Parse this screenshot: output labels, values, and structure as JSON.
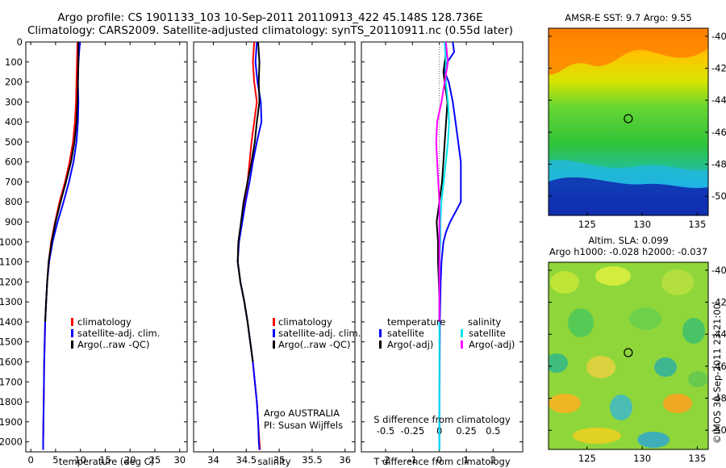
{
  "header": {
    "line1": "Argo profile: CS 1901133_103 10-Sep-2011 20110913_422 45.148S 128.736E",
    "line2": "Climatology: CARS2009. Satellite-adjusted climatology: synTS_20110911.nc (0.55d later)"
  },
  "credit": {
    "org": "Argo AUSTRALIA",
    "pi": "PI: Susan Wijffels",
    "stamp": "©IMOS 30-Sep-2011 23:21:00"
  },
  "colors": {
    "climatology": "#ff0000",
    "satellite": "#0000ff",
    "argo": "#000000",
    "sal_satellite": "#00e5ee",
    "sal_argo": "#ff00ff"
  },
  "chart_data": [
    {
      "type": "line",
      "id": "temperature",
      "xlabel": "temperature (deg C)",
      "xlim": [
        -1,
        31.5
      ],
      "xticks": [
        0,
        5,
        10,
        15,
        20,
        25,
        30
      ],
      "ylim": [
        0,
        2050
      ],
      "yticks": [
        0,
        100,
        200,
        300,
        400,
        500,
        600,
        700,
        800,
        900,
        1000,
        1100,
        1200,
        1300,
        1400,
        1500,
        1600,
        1700,
        1800,
        1900,
        2000
      ],
      "legend": [
        "climatology",
        "satellite-adj. clim.",
        "Argo(..raw -QC)"
      ],
      "series": [
        {
          "name": "climatology",
          "color": "#ff0000",
          "depth": [
            0,
            100,
            200,
            300,
            400,
            500,
            600,
            700,
            800,
            900,
            1000,
            1100,
            1200,
            1300,
            1400,
            1500,
            1600,
            1700,
            1800,
            1900,
            2000,
            2040
          ],
          "values": [
            9.4,
            9.3,
            9.2,
            9.1,
            8.9,
            8.5,
            7.8,
            6.9,
            5.8,
            4.9,
            4.1,
            3.6,
            3.3,
            3.1,
            2.9,
            2.8,
            2.7,
            2.65,
            2.6,
            2.55,
            2.5,
            2.5
          ]
        },
        {
          "name": "satellite-adj. clim.",
          "color": "#0000ff",
          "depth": [
            0,
            100,
            200,
            300,
            400,
            500,
            600,
            700,
            800,
            900,
            1000,
            1100,
            1200,
            1300,
            1400,
            1500,
            1600,
            1700,
            1800,
            1900,
            2000,
            2040
          ],
          "values": [
            9.9,
            9.6,
            9.5,
            9.6,
            9.5,
            9.2,
            8.6,
            7.7,
            6.6,
            5.4,
            4.4,
            3.7,
            3.3,
            3.1,
            2.9,
            2.8,
            2.7,
            2.65,
            2.6,
            2.55,
            2.5,
            2.5
          ]
        },
        {
          "name": "Argo(..raw -QC)",
          "color": "#000000",
          "depth": [
            0,
            100,
            200,
            300,
            400,
            500,
            600,
            700,
            800,
            900,
            1000,
            1100,
            1200,
            1300,
            1400
          ],
          "values": [
            9.6,
            9.6,
            9.5,
            9.4,
            9.2,
            8.8,
            8.1,
            7.1,
            6.0,
            5.0,
            4.2,
            3.6,
            3.3,
            3.1,
            2.9
          ]
        }
      ]
    },
    {
      "type": "line",
      "id": "salinity",
      "xlabel": "salinity",
      "xlim": [
        33.7,
        36.15
      ],
      "xticks": [
        34,
        34.5,
        35,
        35.5,
        36
      ],
      "ylim": [
        0,
        2050
      ],
      "legend": [
        "climatology",
        "satellite-adj. clim.",
        "Argo(..raw -QC)"
      ],
      "series": [
        {
          "name": "climatology",
          "color": "#ff0000",
          "depth": [
            0,
            100,
            200,
            300,
            400,
            500,
            600,
            700,
            800,
            900,
            1000,
            1100,
            1200,
            1300,
            1400,
            1500,
            1600,
            1700,
            1800,
            1900,
            2000,
            2040
          ],
          "values": [
            34.62,
            34.6,
            34.62,
            34.66,
            34.62,
            34.58,
            34.55,
            34.52,
            34.48,
            34.43,
            34.38,
            34.37,
            34.41,
            34.47,
            34.52,
            34.56,
            34.6,
            34.63,
            34.66,
            34.68,
            34.7,
            34.71
          ]
        },
        {
          "name": "satellite-adj. clim.",
          "color": "#0000ff",
          "depth": [
            0,
            100,
            200,
            300,
            400,
            500,
            600,
            700,
            800,
            900,
            1000,
            1100,
            1200,
            1300,
            1400,
            1500,
            1600,
            1700,
            1800,
            1900,
            2000,
            2040
          ],
          "values": [
            34.66,
            34.64,
            34.67,
            34.72,
            34.73,
            34.66,
            34.6,
            34.55,
            34.49,
            34.44,
            34.39,
            34.37,
            34.41,
            34.47,
            34.52,
            34.56,
            34.6,
            34.63,
            34.66,
            34.68,
            34.69,
            34.7
          ]
        },
        {
          "name": "Argo(..raw -QC)",
          "color": "#000000",
          "depth": [
            0,
            100,
            200,
            300,
            400,
            500,
            600,
            700,
            800,
            900,
            1000,
            1100,
            1200,
            1300,
            1400,
            1500,
            1600
          ],
          "values": [
            34.68,
            34.7,
            34.69,
            34.7,
            34.66,
            34.63,
            34.58,
            34.52,
            34.46,
            34.42,
            34.38,
            34.37,
            34.41,
            34.47,
            34.52,
            34.56,
            34.6
          ]
        }
      ]
    },
    {
      "type": "line",
      "id": "difference",
      "xlabel": "T difference from climatology",
      "xlabel2": "S difference from climatology",
      "xlim": [
        -2.9,
        3.1
      ],
      "xticks": [
        -2,
        -1,
        0,
        1,
        2
      ],
      "xticks2": [
        -0.5,
        -0.25,
        0,
        0.25,
        0.5
      ],
      "xticks2_labels": [
        "-0.5",
        "-0.25",
        "0",
        "0.25",
        "0.5"
      ],
      "ylim": [
        0,
        2050
      ],
      "legend_titles": [
        "temperature",
        "salinity"
      ],
      "legend": [
        "satellite",
        "Argo(-adj)",
        "satellite",
        "Argo(-adj)"
      ],
      "series": [
        {
          "name": "satellite",
          "group": "temperature",
          "color": "#0000ff",
          "depth": [
            0,
            50,
            100,
            150,
            200,
            300,
            400,
            500,
            600,
            700,
            800,
            850,
            900,
            950,
            1000,
            1100,
            1200,
            1400,
            1600,
            1800,
            2000,
            2040
          ],
          "values": [
            0.5,
            0.55,
            0.3,
            0.2,
            0.35,
            0.5,
            0.6,
            0.7,
            0.8,
            0.8,
            0.8,
            0.6,
            0.4,
            0.25,
            0.15,
            0.08,
            0.05,
            0.02,
            0.01,
            0.0,
            0.0,
            0.0
          ]
        },
        {
          "name": "Argo(-adj)",
          "group": "temperature",
          "color": "#000000",
          "depth": [
            0,
            50,
            100,
            150,
            200,
            300,
            400,
            500,
            600,
            700,
            800,
            850,
            900,
            1000,
            1100,
            1200,
            1300,
            1400
          ],
          "values": [
            0.2,
            0.25,
            0.2,
            0.15,
            0.2,
            0.3,
            0.25,
            0.2,
            0.15,
            0.1,
            0.0,
            -0.05,
            -0.1,
            -0.05,
            -0.05,
            -0.02,
            0.0,
            0.0
          ]
        },
        {
          "name": "satellite",
          "group": "salinity",
          "color": "#00e5ee",
          "depth": [
            0,
            100,
            200,
            300,
            400,
            500,
            600,
            700,
            800,
            900,
            1000,
            1100,
            1200,
            1400,
            1600,
            1800,
            2000,
            2040
          ],
          "values": [
            0.05,
            0.06,
            0.06,
            0.08,
            0.09,
            0.08,
            0.06,
            0.04,
            0.02,
            0.01,
            0.01,
            0.0,
            0.0,
            0.0,
            0.0,
            0.0,
            0.0,
            0.0
          ]
        },
        {
          "name": "Argo(-adj)",
          "group": "salinity",
          "color": "#ff00ff",
          "depth": [
            0,
            100,
            200,
            300,
            400,
            500,
            600,
            700,
            800,
            900,
            1000,
            1100,
            1200,
            1300,
            1400
          ],
          "values": [
            0.06,
            0.08,
            0.05,
            0.02,
            -0.02,
            -0.03,
            -0.02,
            -0.01,
            0.0,
            0.0,
            0.0,
            0.0,
            0.0,
            0.0,
            0.0
          ]
        }
      ]
    },
    {
      "type": "heatmap",
      "id": "sst-map",
      "title": "AMSR-E SST: 9.7 Argo: 9.55",
      "xlim": [
        121.5,
        136
      ],
      "ylim": [
        -51.2,
        -39.5
      ],
      "xticks": [
        125,
        130,
        135
      ],
      "yticks": [
        -40,
        -42,
        -44,
        -46,
        -48,
        -50
      ],
      "marker": [
        128.736,
        -45.148
      ]
    },
    {
      "type": "heatmap",
      "id": "sla-map",
      "title": "Altim. SLA: 0.099",
      "subtitle": "Argo h1000: -0.028 h2000: -0.037",
      "xlim": [
        121.5,
        136
      ],
      "ylim": [
        -51.2,
        -39.5
      ],
      "xticks": [
        125,
        130,
        135
      ],
      "yticks": [
        -40,
        -42,
        -44,
        -46,
        -48,
        -50
      ],
      "marker": [
        128.736,
        -45.148
      ]
    }
  ]
}
